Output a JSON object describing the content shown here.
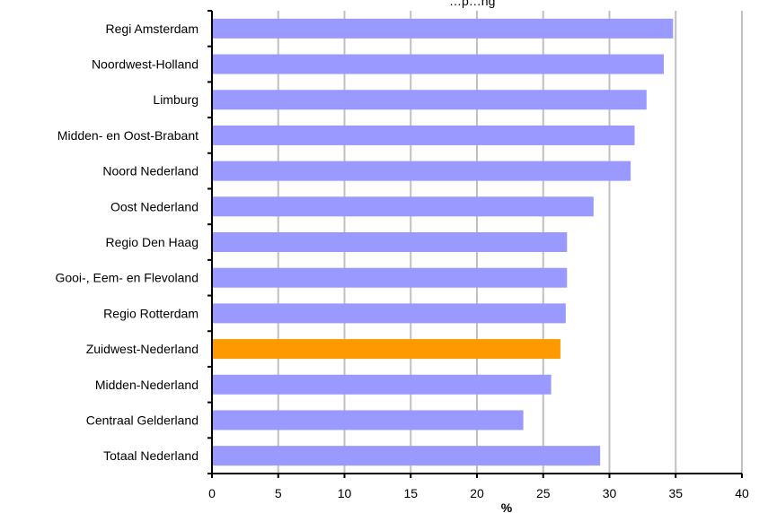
{
  "chart_data": {
    "type": "bar",
    "orientation": "horizontal",
    "title": "…p…ng",
    "xlabel": "%",
    "ylabel": "",
    "xlim": [
      0,
      40
    ],
    "xticks": [
      0,
      5,
      10,
      15,
      20,
      25,
      30,
      35,
      40
    ],
    "grid": "vertical",
    "categories": [
      "Regi Amsterdam",
      "Noordwest-Holland",
      "Limburg",
      "Midden- en Oost-Brabant",
      "Noord Nederland",
      "Oost Nederland",
      "Regio Den Haag",
      "Gooi-, Eem- en Flevoland",
      "Regio Rotterdam",
      "Zuidwest-Nederland",
      "Midden-Nederland",
      "Centraal Gelderland",
      "Totaal Nederland"
    ],
    "values": [
      34.8,
      34.1,
      32.8,
      31.9,
      31.6,
      28.8,
      26.8,
      26.8,
      26.7,
      26.3,
      25.6,
      23.5,
      29.3
    ],
    "highlight": "Zuidwest-Nederland",
    "colors": {
      "bar": "#9999ff",
      "highlight": "#ff9900",
      "grid": "#c0c0c0",
      "axis": "#000000"
    }
  }
}
